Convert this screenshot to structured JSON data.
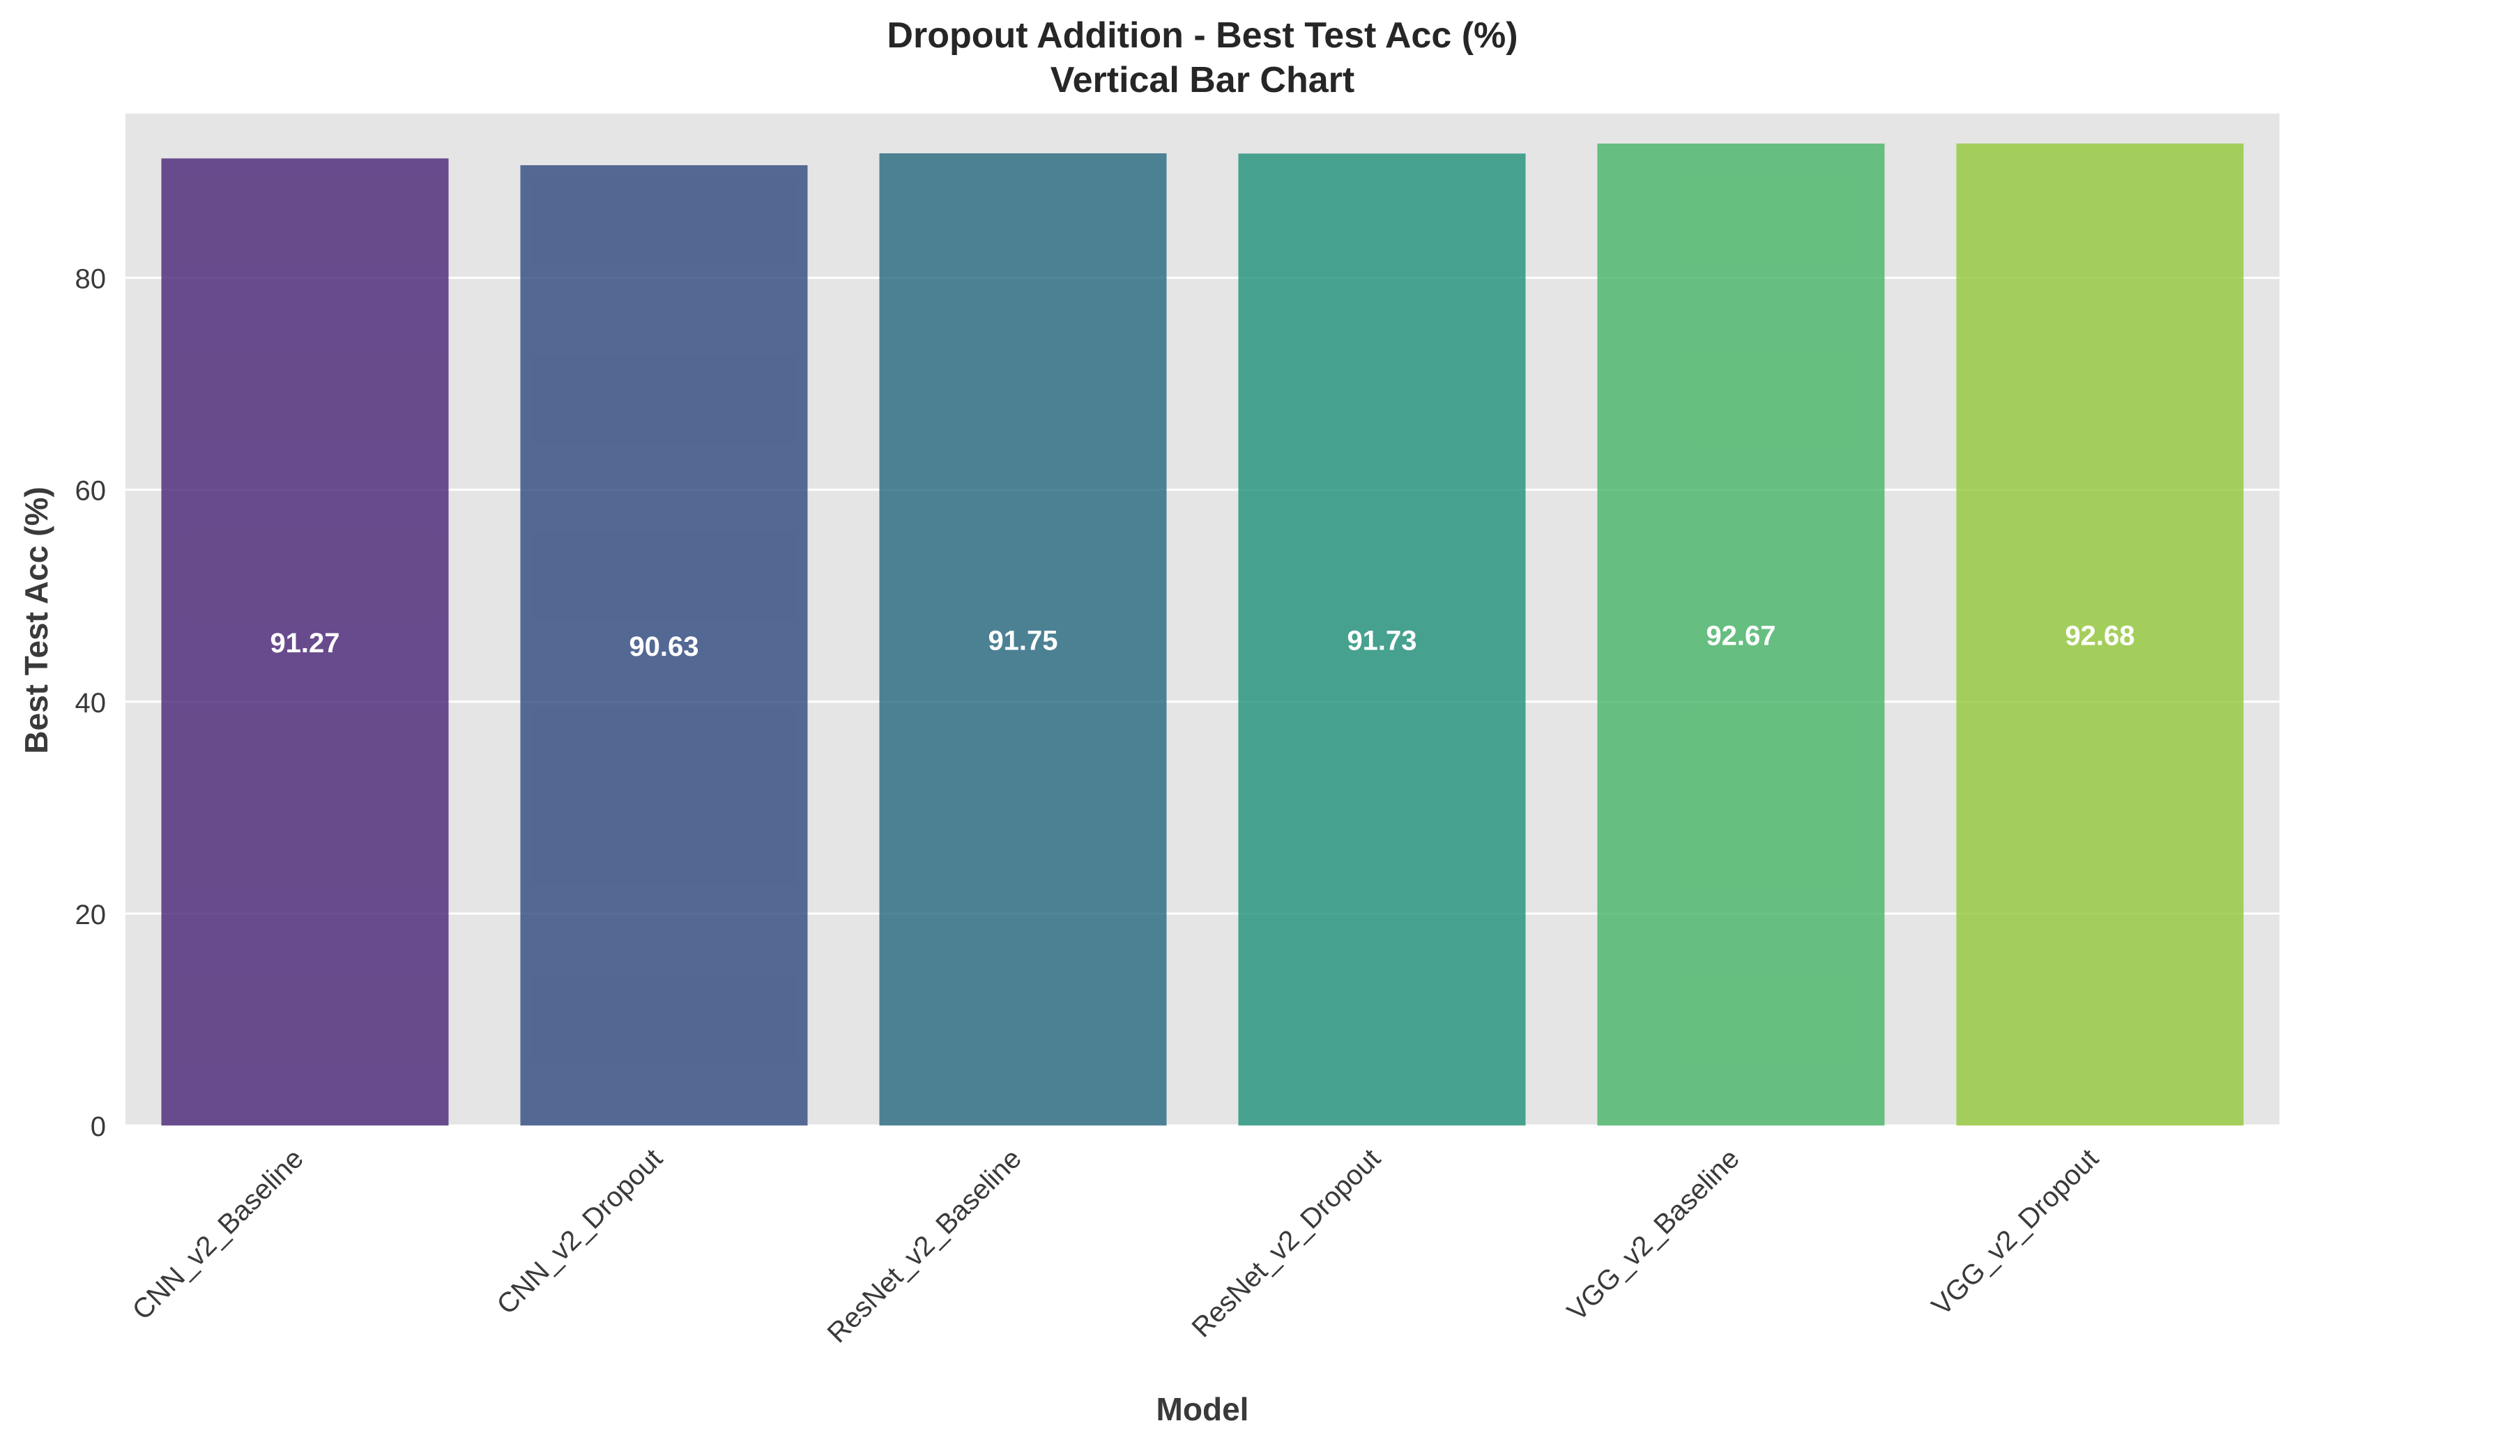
{
  "chart_data": {
    "type": "bar",
    "title": "Dropout Addition - Best Test Acc (%)",
    "subtitle": "Vertical Bar Chart",
    "xlabel": "Model",
    "ylabel": "Best Test Acc (%)",
    "categories": [
      "CNN_v2_Baseline",
      "CNN_v2_Dropout",
      "ResNet_v2_Baseline",
      "ResNet_v2_Dropout",
      "VGG_v2_Baseline",
      "VGG_v2_Dropout"
    ],
    "values": [
      91.27,
      90.63,
      91.75,
      91.73,
      92.67,
      92.68
    ],
    "value_labels": [
      "91.27",
      "90.63",
      "91.75",
      "91.73",
      "92.67",
      "92.68"
    ],
    "ylim": [
      0,
      95.5
    ],
    "yticks": [
      0,
      20,
      40,
      60,
      80
    ],
    "grid": true,
    "colors": [
      "#482475",
      "#30487f",
      "#26687f",
      "#1f9079",
      "#46b466",
      "#93c83a"
    ],
    "background": "#e5e5e5"
  }
}
